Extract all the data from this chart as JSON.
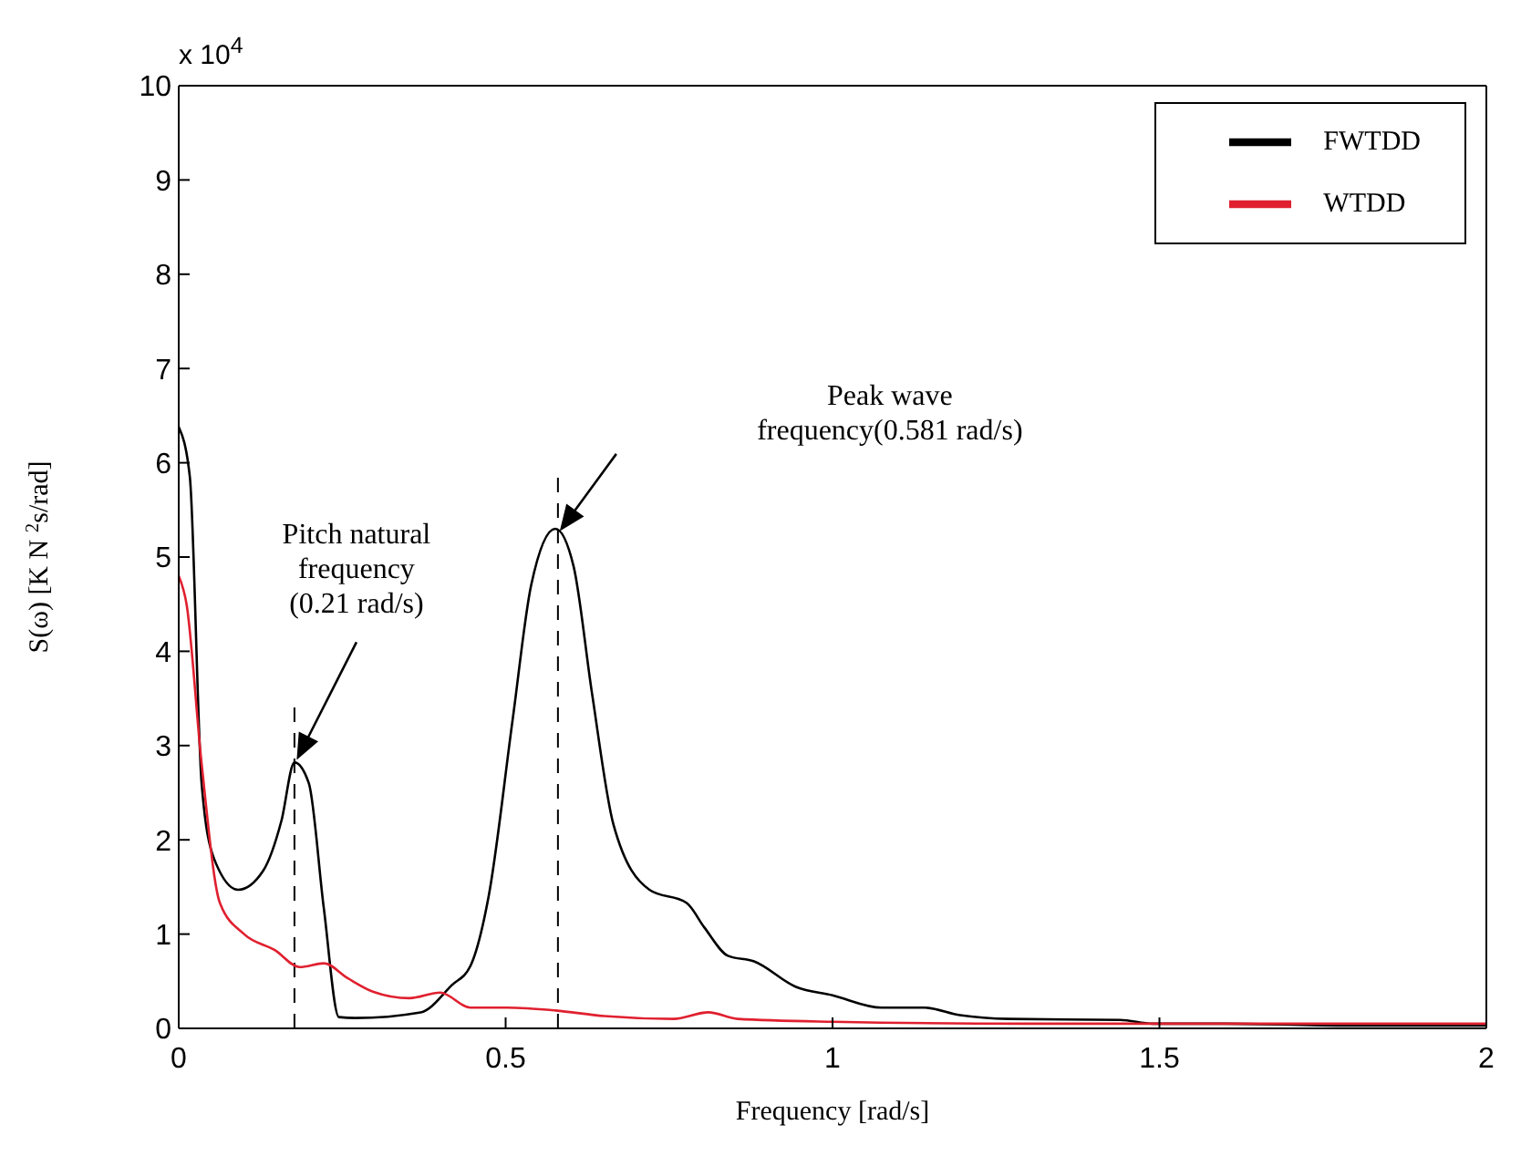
{
  "chart_data": {
    "type": "line",
    "xlabel": "Frequency [rad/s]",
    "ylabel": "S(ω) [K N $^{2}$s/rad]",
    "annotations": [
      "Pitch natural frequency (0.21 rad/s)",
      "Peak wave frequency(0.581 rad/s)",
      "x 10$^{4}$"
    ],
    "series": [
      {
        "name": "FWTDD",
        "color": "#000000",
        "x": [
          0,
          0.017,
          0.035,
          0.054,
          0.091,
          0.129,
          0.157,
          0.177,
          0.199,
          0.222,
          0.245,
          0.27,
          0.37,
          0.418,
          0.446,
          0.474,
          0.511,
          0.539,
          0.576,
          0.604,
          0.632,
          0.665,
          0.72,
          0.777,
          0.804,
          0.84,
          0.88,
          0.944,
          1.0,
          1.075,
          1.14,
          1.195,
          1.27,
          1.44,
          1.49,
          1.6,
          1.8,
          2.0
        ],
        "values": [
          6.38,
          5.85,
          2.6,
          1.8,
          1.47,
          1.67,
          2.2,
          2.82,
          2.6,
          1.27,
          0.12,
          0.11,
          0.17,
          0.46,
          0.66,
          1.4,
          3.29,
          4.7,
          5.3,
          4.9,
          3.56,
          2.16,
          1.47,
          1.33,
          1.07,
          0.77,
          0.71,
          0.44,
          0.35,
          0.22,
          0.22,
          0.14,
          0.1,
          0.09,
          0.05,
          0.05,
          0.03,
          0.03
        ]
      },
      {
        "name": "WTDD",
        "color": "#e0202f",
        "x": [
          0,
          0.012,
          0.035,
          0.063,
          0.1,
          0.147,
          0.185,
          0.222,
          0.259,
          0.297,
          0.353,
          0.4,
          0.446,
          0.502,
          0.576,
          0.651,
          0.757,
          0.81,
          0.855,
          1.0,
          1.3,
          1.6,
          1.85,
          2.0
        ],
        "values": [
          4.8,
          4.5,
          2.81,
          1.33,
          1.0,
          0.83,
          0.65,
          0.69,
          0.53,
          0.39,
          0.32,
          0.38,
          0.22,
          0.22,
          0.19,
          0.13,
          0.1,
          0.17,
          0.1,
          0.07,
          0.05,
          0.05,
          0.05,
          0.05
        ]
      }
    ],
    "ref_lines": [
      {
        "axis": "x",
        "value": 0.177,
        "label": null,
        "line_style": "dashed",
        "color": "#000000"
      },
      {
        "axis": "x",
        "value": 0.58,
        "label": null,
        "line_style": "dashed",
        "color": "#000000"
      }
    ],
    "xlim": [
      0,
      2
    ],
    "xticks": [
      0,
      0.5,
      1,
      1.5,
      2
    ],
    "ylim": [
      0,
      10
    ],
    "yticks": [
      0,
      1,
      2,
      3,
      4,
      5,
      6,
      7,
      8,
      9,
      10
    ],
    "grid": false,
    "legend": "top right",
    "marker": "none",
    "line_style": "solid"
  }
}
